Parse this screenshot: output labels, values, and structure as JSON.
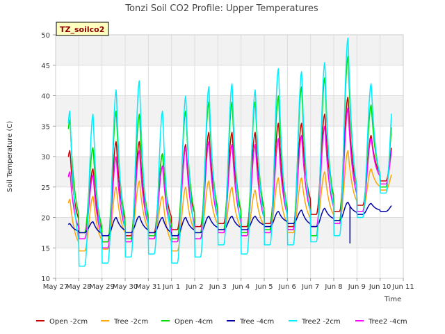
{
  "chart_data": {
    "type": "line",
    "title": "Tonzi Soil CO2 Profile: Upper Temperatures",
    "xlabel": "Time",
    "ylabel": "Soil Temperature (C)",
    "badge": "TZ_soilco2",
    "ylim": [
      10,
      50
    ],
    "yticks": [
      10,
      15,
      20,
      25,
      30,
      35,
      40,
      45,
      50
    ],
    "xlim": [
      0,
      15
    ],
    "xticks": [
      {
        "x": 0,
        "label": "May 27"
      },
      {
        "x": 1,
        "label": "May 28"
      },
      {
        "x": 2,
        "label": "May 29"
      },
      {
        "x": 3,
        "label": "May 30"
      },
      {
        "x": 4,
        "label": "May 31"
      },
      {
        "x": 5,
        "label": "Jun 1"
      },
      {
        "x": 6,
        "label": "Jun 2"
      },
      {
        "x": 7,
        "label": "Jun 3"
      },
      {
        "x": 8,
        "label": "Jun 4"
      },
      {
        "x": 9,
        "label": "Jun 5"
      },
      {
        "x": 10,
        "label": "Jun 6"
      },
      {
        "x": 11,
        "label": "Jun 7"
      },
      {
        "x": 12,
        "label": "Jun 8"
      },
      {
        "x": 13,
        "label": "Jun 9"
      },
      {
        "x": 14,
        "label": "Jun 10"
      },
      {
        "x": 15,
        "label": "Jun 11"
      }
    ],
    "grid": true,
    "legend_position": "bottom",
    "series": [
      {
        "name": "Open -2cm",
        "color": "#cc0000",
        "x_start": 0.55,
        "x_end": 14.5,
        "lows": [
          18.5,
          17.5,
          16.0,
          17.0,
          17.5,
          18.0,
          18.5,
          19.0,
          18.5,
          19.0,
          18.5,
          20.5,
          21.0,
          22.0,
          26.0
        ],
        "peaks": [
          31.0,
          28.0,
          32.5,
          32.5,
          30.5,
          32.0,
          34.0,
          34.0,
          34.0,
          35.5,
          35.5,
          37.0,
          39.8,
          33.5
        ]
      },
      {
        "name": "Tree -2cm",
        "color": "#ffa500",
        "x_start": 0.55,
        "x_end": 14.5,
        "lows": [
          15.5,
          14.5,
          14.8,
          16.0,
          16.5,
          14.5,
          16.5,
          17.5,
          17.0,
          17.5,
          17.5,
          18.5,
          19.0,
          21.0,
          24.5
        ],
        "peaks": [
          23.0,
          23.5,
          25.0,
          26.0,
          23.5,
          25.0,
          26.0,
          25.0,
          24.5,
          26.5,
          26.5,
          27.5,
          31.0,
          28.0
        ]
      },
      {
        "name": "Open -4cm",
        "color": "#00dd00",
        "x_start": 0.55,
        "x_end": 14.5,
        "lows": [
          19.0,
          17.5,
          16.0,
          16.5,
          17.0,
          16.5,
          17.5,
          18.0,
          17.5,
          18.0,
          18.0,
          17.0,
          19.5,
          21.0,
          25.0
        ],
        "peaks": [
          36.0,
          31.5,
          37.5,
          37.0,
          30.5,
          37.5,
          39.0,
          39.0,
          39.0,
          40.0,
          41.5,
          43.0,
          46.5,
          38.5
        ]
      },
      {
        "name": "Tree -4cm",
        "color": "#0000aa",
        "x_start": 0.55,
        "x_end": 14.5,
        "lows": [
          17.0,
          17.5,
          17.0,
          17.5,
          17.5,
          17.0,
          17.5,
          18.0,
          18.0,
          18.5,
          19.0,
          18.5,
          19.5,
          20.5,
          21.0
        ],
        "peaks": [
          19.0,
          19.3,
          20.0,
          20.2,
          20.0,
          20.0,
          20.2,
          20.2,
          20.2,
          21.0,
          21.2,
          21.5,
          22.5,
          22.3
        ]
      },
      {
        "name": "Tree2 -2cm",
        "color": "#00eeff",
        "x_start": 0.55,
        "x_end": 14.5,
        "lows": [
          14.0,
          12.0,
          12.5,
          13.5,
          14.0,
          12.5,
          13.5,
          15.5,
          14.0,
          15.5,
          15.5,
          16.0,
          17.0,
          20.0,
          24.0
        ],
        "peaks": [
          37.5,
          37.0,
          41.0,
          42.5,
          37.5,
          40.0,
          41.5,
          42.0,
          41.0,
          44.5,
          44.0,
          45.5,
          49.5,
          42.0
        ]
      },
      {
        "name": "Tree2 -4cm",
        "color": "#ff00ff",
        "x_start": 0.55,
        "x_end": 14.5,
        "lows": [
          17.5,
          16.5,
          15.0,
          16.0,
          16.5,
          16.0,
          16.5,
          17.5,
          17.0,
          17.5,
          18.0,
          18.5,
          19.0,
          21.0,
          25.5
        ],
        "peaks": [
          27.5,
          27.0,
          30.0,
          31.0,
          28.5,
          31.5,
          32.5,
          32.0,
          32.0,
          33.0,
          33.5,
          35.0,
          38.0,
          33.0
        ]
      }
    ],
    "annotations": [
      {
        "series": "Tree -4cm",
        "type": "spike",
        "x": 12.7,
        "value": 15.8
      }
    ]
  }
}
